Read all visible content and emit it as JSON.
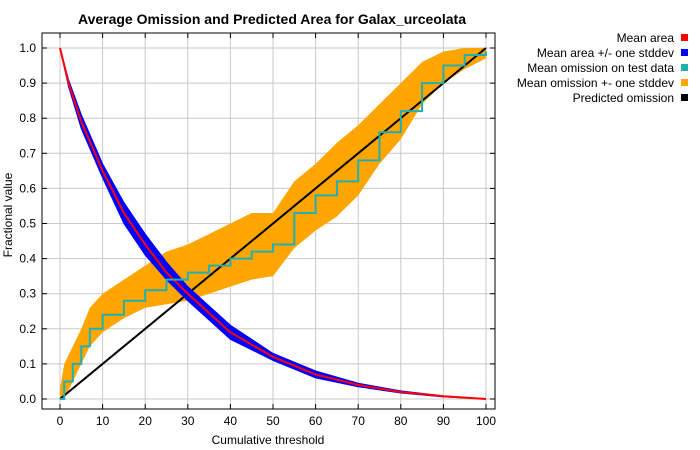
{
  "chart_data": {
    "type": "line",
    "title": "Average Omission and Predicted Area for Galax_urceolata",
    "xlabel": "Cumulative threshold",
    "ylabel": "Fractional value",
    "xlim": [
      0,
      100
    ],
    "ylim": [
      0,
      1.0
    ],
    "x_ticks": [
      "0",
      "10",
      "20",
      "30",
      "40",
      "50",
      "60",
      "70",
      "80",
      "90",
      "100"
    ],
    "y_ticks": [
      "0.0",
      "0.1",
      "0.2",
      "0.3",
      "0.4",
      "0.5",
      "0.6",
      "0.7",
      "0.8",
      "0.9",
      "1.0"
    ],
    "grid": true,
    "legend_position": "top-right outside",
    "series": [
      {
        "name": "Mean area",
        "color": "#ff0000",
        "x": [
          0,
          2,
          5,
          10,
          15,
          20,
          25,
          30,
          40,
          50,
          60,
          70,
          80,
          90,
          100
        ],
        "y": [
          1.0,
          0.9,
          0.79,
          0.65,
          0.53,
          0.44,
          0.36,
          0.3,
          0.19,
          0.12,
          0.07,
          0.04,
          0.02,
          0.008,
          0.0
        ]
      },
      {
        "name": "Mean area +/- one stddev",
        "color": "#0000ff",
        "x": [
          0,
          2,
          5,
          10,
          15,
          20,
          25,
          30,
          40,
          50,
          60,
          70,
          80,
          90,
          100
        ],
        "upper": [
          1.0,
          0.91,
          0.81,
          0.67,
          0.56,
          0.47,
          0.39,
          0.32,
          0.21,
          0.13,
          0.08,
          0.045,
          0.023,
          0.009,
          0.0
        ],
        "lower": [
          1.0,
          0.89,
          0.77,
          0.63,
          0.5,
          0.41,
          0.34,
          0.28,
          0.17,
          0.11,
          0.06,
          0.035,
          0.017,
          0.006,
          0.0
        ]
      },
      {
        "name": "Mean omission on test data",
        "color": "#20b0b0",
        "x": [
          0,
          1,
          3,
          5,
          7,
          10,
          15,
          20,
          25,
          30,
          35,
          40,
          45,
          50,
          55,
          60,
          65,
          70,
          75,
          80,
          85,
          90,
          95,
          100
        ],
        "y": [
          0.0,
          0.05,
          0.1,
          0.15,
          0.2,
          0.24,
          0.28,
          0.31,
          0.34,
          0.36,
          0.38,
          0.4,
          0.42,
          0.44,
          0.53,
          0.58,
          0.62,
          0.68,
          0.76,
          0.82,
          0.9,
          0.95,
          0.98,
          0.99
        ]
      },
      {
        "name": "Mean omission +- one stddev",
        "color": "#ffa500",
        "x": [
          0,
          1,
          3,
          5,
          7,
          10,
          15,
          20,
          25,
          30,
          35,
          40,
          45,
          50,
          55,
          60,
          65,
          70,
          75,
          80,
          85,
          90,
          95,
          100
        ],
        "upper": [
          0.03,
          0.1,
          0.15,
          0.2,
          0.26,
          0.3,
          0.34,
          0.38,
          0.42,
          0.44,
          0.47,
          0.5,
          0.53,
          0.53,
          0.62,
          0.67,
          0.73,
          0.78,
          0.84,
          0.9,
          0.96,
          0.99,
          1.0,
          1.0
        ],
        "lower": [
          0.0,
          0.0,
          0.05,
          0.1,
          0.15,
          0.19,
          0.23,
          0.26,
          0.27,
          0.28,
          0.3,
          0.32,
          0.34,
          0.35,
          0.43,
          0.48,
          0.52,
          0.58,
          0.67,
          0.74,
          0.84,
          0.9,
          0.94,
          0.97
        ]
      },
      {
        "name": "Predicted omission",
        "color": "#000000",
        "x": [
          0,
          100
        ],
        "y": [
          0.0,
          1.0
        ]
      }
    ]
  }
}
